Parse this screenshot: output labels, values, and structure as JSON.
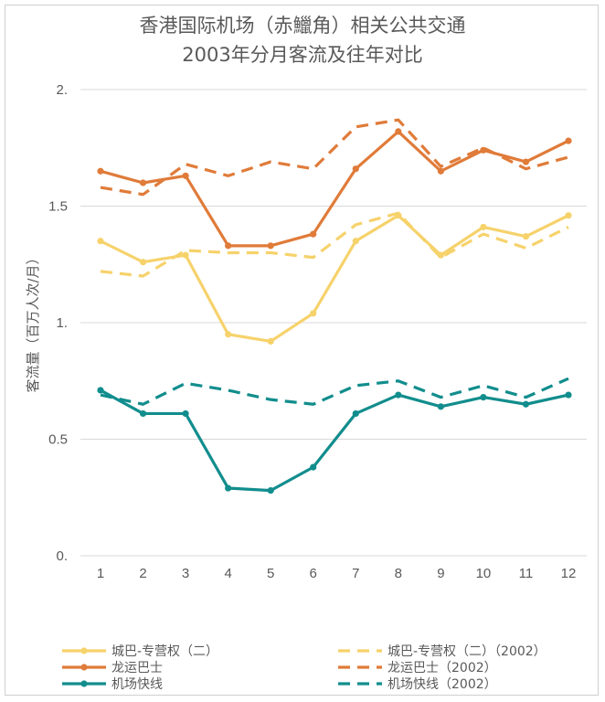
{
  "chart_data": {
    "type": "line",
    "title_line1": "香港国际机场（赤鱲角）相关公共交通",
    "title_line2": "2003年分月客流及往年对比",
    "ylabel": "客流量（百万人次/月）",
    "xlabel": "",
    "ylim": [
      0,
      2
    ],
    "yticks": [
      0,
      0.5,
      1,
      1.5,
      2
    ],
    "ytick_labels": [
      "0.",
      "0.5",
      "1.",
      "1.5",
      "2."
    ],
    "categories": [
      "1",
      "2",
      "3",
      "4",
      "5",
      "6",
      "7",
      "8",
      "9",
      "10",
      "11",
      "12"
    ],
    "grid": true,
    "legend_position": "bottom",
    "series": [
      {
        "name": "城巴-专营权（二）",
        "style": "solid",
        "marker": true,
        "color": "#f6d26b",
        "values": [
          1.35,
          1.26,
          1.29,
          0.95,
          0.92,
          1.04,
          1.35,
          1.46,
          1.29,
          1.41,
          1.37,
          1.46
        ]
      },
      {
        "name": "龙运巴士",
        "style": "solid",
        "marker": true,
        "color": "#e07b39",
        "values": [
          1.65,
          1.6,
          1.63,
          1.33,
          1.33,
          1.38,
          1.66,
          1.82,
          1.65,
          1.74,
          1.69,
          1.78
        ]
      },
      {
        "name": "机场快线",
        "style": "solid",
        "marker": true,
        "color": "#128d8d",
        "values": [
          0.71,
          0.61,
          0.61,
          0.29,
          0.28,
          0.38,
          0.61,
          0.69,
          0.64,
          0.68,
          0.65,
          0.69
        ]
      },
      {
        "name": "城巴-专营权（二）（2002）",
        "style": "dashed",
        "marker": false,
        "color": "#f6d26b",
        "values": [
          1.22,
          1.2,
          1.31,
          1.3,
          1.3,
          1.28,
          1.42,
          1.47,
          1.28,
          1.38,
          1.32,
          1.41
        ]
      },
      {
        "name": "龙运巴士（2002）",
        "style": "dashed",
        "marker": false,
        "color": "#e07b39",
        "values": [
          1.58,
          1.55,
          1.68,
          1.63,
          1.69,
          1.66,
          1.84,
          1.87,
          1.67,
          1.75,
          1.66,
          1.71
        ]
      },
      {
        "name": "机场快线（2002）",
        "style": "dashed",
        "marker": false,
        "color": "#128d8d",
        "values": [
          0.69,
          0.65,
          0.74,
          0.71,
          0.67,
          0.65,
          0.73,
          0.75,
          0.68,
          0.73,
          0.68,
          0.76
        ]
      }
    ]
  }
}
